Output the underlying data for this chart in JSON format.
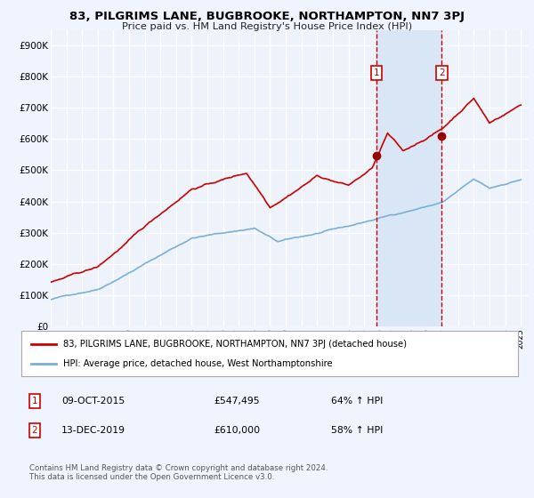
{
  "title1": "83, PILGRIMS LANE, BUGBROOKE, NORTHAMPTON, NN7 3PJ",
  "title2": "Price paid vs. HM Land Registry's House Price Index (HPI)",
  "legend_red": "83, PILGRIMS LANE, BUGBROOKE, NORTHAMPTON, NN7 3PJ (detached house)",
  "legend_blue": "HPI: Average price, detached house, West Northamptonshire",
  "annotation1_date": "09-OCT-2015",
  "annotation1_price": "£547,495",
  "annotation1_hpi": "64% ↑ HPI",
  "annotation2_date": "13-DEC-2019",
  "annotation2_price": "£610,000",
  "annotation2_hpi": "58% ↑ HPI",
  "sale1_year": 2015.78,
  "sale1_value": 547495,
  "sale2_year": 2019.95,
  "sale2_value": 610000,
  "footer": "Contains HM Land Registry data © Crown copyright and database right 2024.\nThis data is licensed under the Open Government Licence v3.0.",
  "background_color": "#f0f4ff",
  "plot_bg": "#eef2fa",
  "grid_color": "#ffffff",
  "shade_color": "#d8e6f5",
  "red_line_color": "#cc0000",
  "blue_line_color": "#7ab0d8",
  "marker_color": "#990000",
  "vline_color": "#cc0000",
  "box_color": "#cc0000",
  "ylim_max": 950000,
  "ylim_min": 0,
  "xmin": 1995,
  "xmax": 2025.5
}
